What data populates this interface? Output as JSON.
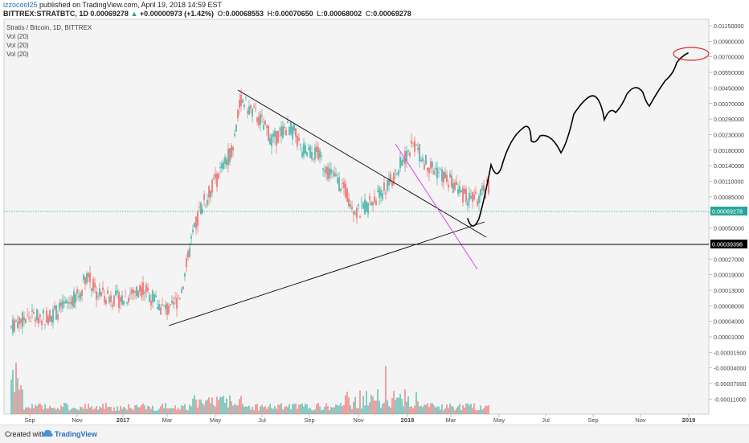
{
  "header": {
    "author": "izzocool25",
    "published": " published on TradingView.com, April 19, 2018 14:59 EST",
    "symbol": "BITTREX:STRATBTC, 1D",
    "last": "0.00069278",
    "change": "+0.00000973 (+1.42%)",
    "open_label": "O:",
    "open": "0.00068553",
    "high_label": "H:",
    "high": "0.00070650",
    "low_label": "L:",
    "low": "0.00068002",
    "close_label": "C:",
    "close": "0.00069278"
  },
  "legend": {
    "title": "Stratis / Bitcoin, 1D, BITTREX",
    "vol1": "Vol (20)",
    "vol2": "Vol (20)",
    "vol3": "Vol (20)"
  },
  "footer": {
    "created": "Created with",
    "brand": "TradingView"
  },
  "chart_data": {
    "type": "candlestick",
    "price_axis": [
      "0.01150000",
      "0.00900000",
      "0.00700000",
      "0.00550000",
      "0.00450000",
      "0.00370000",
      "0.00290000",
      "0.00230000",
      "0.00180000",
      "0.00140000",
      "0.00110000",
      "0.00085000",
      "0.00065000",
      "0.00050000",
      "0.00035000",
      "0.00027000",
      "0.00019000",
      "0.00013000",
      "0.00008000",
      "0.00004000",
      "0.00001000",
      "-0.00001500",
      "-0.00004000",
      "-0.00007000",
      "-0.00011000"
    ],
    "time_axis": [
      "Sep",
      "Nov",
      "2017",
      "Mar",
      "May",
      "Jul",
      "Sep",
      "Nov",
      "2018",
      "Mar",
      "May",
      "Jul",
      "Sep",
      "Nov",
      "2019"
    ],
    "current_price_label": "0.00069278",
    "support_label": "0.00039398",
    "price_range": [
      3e-05,
      0.0043
    ],
    "line_color": "#000000",
    "projection_color": "#000000",
    "circle_color": "#d32f2f",
    "magenta_line_color": "#e040fb",
    "up_color": "#26a69a",
    "down_color": "#ef5350",
    "current_line_color": "#26a69a"
  }
}
